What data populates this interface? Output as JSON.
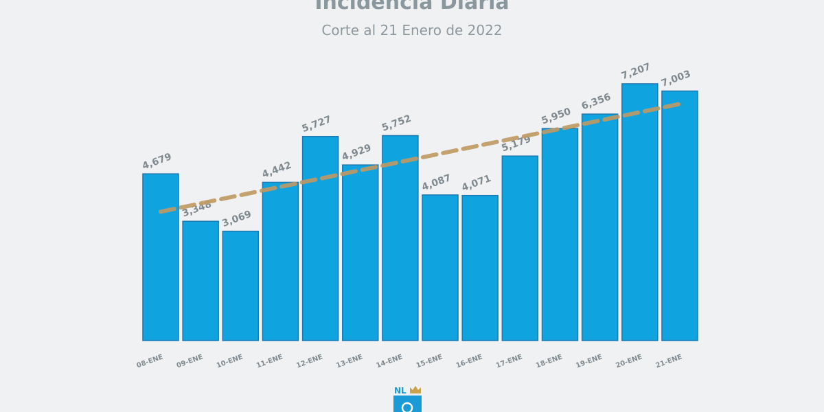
{
  "chart_data": {
    "type": "bar",
    "title": "Incidencia Diaria",
    "subtitle": "Corte al 21 Enero de 2022",
    "categories": [
      "08-ENE",
      "09-ENE",
      "10-ENE",
      "11-ENE",
      "12-ENE",
      "13-ENE",
      "14-ENE",
      "15-ENE",
      "16-ENE",
      "17-ENE",
      "18-ENE",
      "19-ENE",
      "20-ENE",
      "21-ENE"
    ],
    "values": [
      4679,
      3348,
      3069,
      4442,
      5727,
      4929,
      5752,
      4087,
      4071,
      5179,
      5950,
      6356,
      7207,
      7003
    ],
    "data_labels": [
      "4,679",
      "3,348",
      "3,069",
      "4,442",
      "5,727",
      "4,929",
      "5,752",
      "4,087",
      "4,071",
      "5,179",
      "5,950",
      "6,356",
      "7,207",
      "7,003"
    ],
    "trendline": "linear",
    "ylim": [
      0,
      7500
    ],
    "grid": false,
    "colors": {
      "bar": "#0fa3e0",
      "bar_border": "#1b78b0",
      "trend": "#c09a62",
      "text": "#8a979d"
    },
    "logo": "NL"
  }
}
